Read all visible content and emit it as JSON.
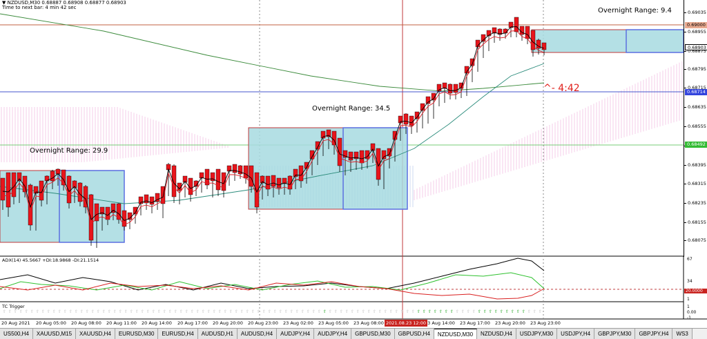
{
  "header": {
    "symbol_line": "▼ NZDUSD,M30  0.68887 0.68908 0.68877 0.68903",
    "timer_line": "Time to next bar: 4 min 42 sec"
  },
  "annotations": {
    "range_1": "Overnight Range: 29.9",
    "range_2": "Overnight Range: 34.5",
    "range_3": "Overnight Range: 9.4",
    "timer": "^- 4:42"
  },
  "price_axis": {
    "ticks": [
      "0.69035",
      "0.68955",
      "0.68875",
      "0.68795",
      "0.68715",
      "0.68635",
      "0.68555",
      "0.68475",
      "0.68395",
      "0.68315",
      "0.68235",
      "0.68155",
      "0.68075"
    ],
    "badges": {
      "resistance": "0.69000",
      "current": "0.68903",
      "support": "0.68714",
      "ema": "0.68492"
    }
  },
  "adx": {
    "label": "ADX(14) 45.5667 +DI:18.9868 -DI:21.1514",
    "ticks": [
      "67",
      "34",
      "20.0000",
      "1"
    ],
    "level_badge": "20.0000"
  },
  "tc_trigger": {
    "label": "TC Trigger",
    "ticks": [
      "1",
      "0.00",
      "-1"
    ]
  },
  "time_axis": {
    "ticks": [
      "20 Aug 2021",
      "20 Aug 05:00",
      "20 Aug 08:00",
      "20 Aug 11:00",
      "20 Aug 14:00",
      "20 Aug 17:00",
      "20 Aug 20:00",
      "20 Aug 23:00",
      "23 Aug 02:00",
      "23 Aug 05:00",
      "23 Aug 08:00",
      "23 Aug 14:00",
      "23 Aug 17:00",
      "23 Aug 20:00",
      "23 Aug 23:00"
    ],
    "highlight": "2021.08.23 12:00"
  },
  "tabs": [
    "US500,H4",
    "XAUUSD,M15",
    "XAUUSD,H4",
    "EURUSD,M30",
    "EURUSD,H4",
    "AUDUSD,H1",
    "AUDUSD,H4",
    "AUDJPY,H4",
    "AUDJPY,H4",
    "GBPUSD,M30",
    "GBPUSD,H4",
    "NZDUSD,M30",
    "NZDUSD,H4",
    "USDJPY,M30",
    "USDJPY,H4",
    "GBPJPY,M30",
    "GBPJPY,H4",
    "WS3"
  ],
  "active_tab": "NZDUSD,M30",
  "colors": {
    "bull": "#22d922",
    "bear": "#e8151b",
    "range_fill": "#a7dbe1",
    "range_red": "#c0393b",
    "range_blue": "#5b6fe0",
    "cloud": "#f0b8e0",
    "ma_black": "#000000",
    "ma_red": "#e01b24",
    "ma_teal": "#2c8c7c",
    "ma_green": "#3a8a3a",
    "adx_black": "#000000",
    "adx_green": "#2ec12e",
    "adx_red": "#d91e1e"
  }
}
